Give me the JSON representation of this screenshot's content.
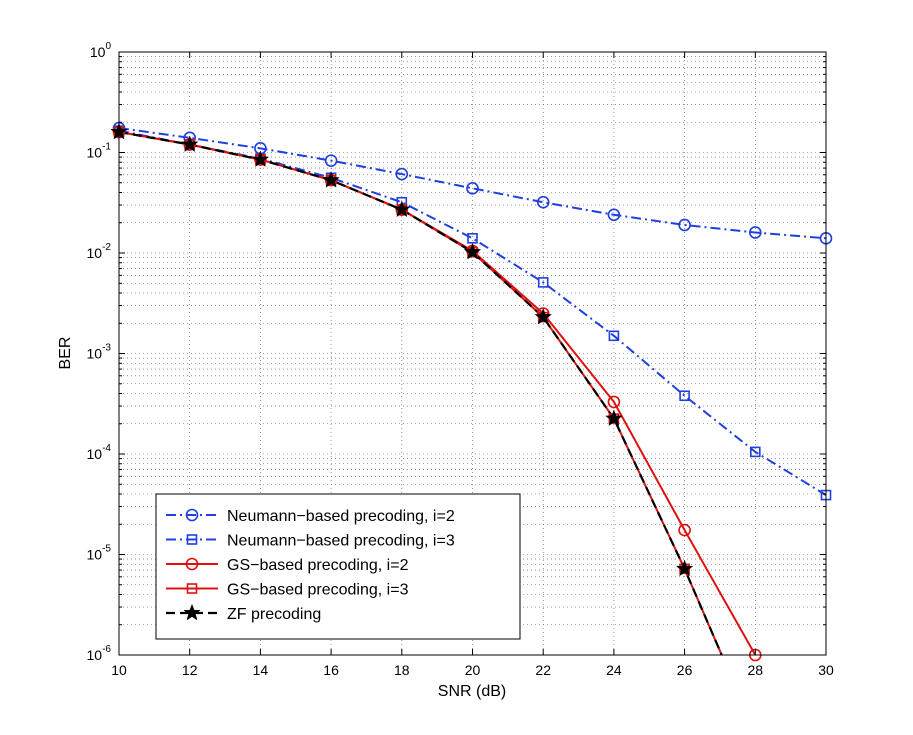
{
  "chart_data": {
    "type": "line",
    "title": "",
    "xlabel": "SNR (dB)",
    "ylabel": "BER",
    "xlim": [
      10,
      30
    ],
    "ylim": [
      1e-06,
      1
    ],
    "yscale": "log",
    "grid": true,
    "legend_position": "bottom-left",
    "x_ticks": [
      "10",
      "12",
      "14",
      "16",
      "18",
      "20",
      "22",
      "24",
      "26",
      "28",
      "30"
    ],
    "y_ticks": [
      {
        "base": "10",
        "exp": "0"
      },
      {
        "base": "10",
        "exp": "-1"
      },
      {
        "base": "10",
        "exp": "-2"
      },
      {
        "base": "10",
        "exp": "-3"
      },
      {
        "base": "10",
        "exp": "-4"
      },
      {
        "base": "10",
        "exp": "-5"
      },
      {
        "base": "10",
        "exp": "-6"
      }
    ],
    "series": [
      {
        "name": "Neumann−based precoding, i=2",
        "color": "#1f3fe0",
        "linestyle": "dashdot",
        "marker": "circle",
        "x": [
          10,
          12,
          14,
          16,
          18,
          20,
          22,
          24,
          26,
          28,
          30
        ],
        "y": [
          0.175,
          0.14,
          0.11,
          0.083,
          0.061,
          0.044,
          0.032,
          0.024,
          0.019,
          0.016,
          0.014
        ]
      },
      {
        "name": "Neumann−based precoding, i=3",
        "color": "#1f3fe0",
        "linestyle": "dashdot",
        "marker": "square",
        "x": [
          10,
          12,
          14,
          16,
          18,
          20,
          22,
          24,
          26,
          28,
          30
        ],
        "y": [
          0.165,
          0.12,
          0.087,
          0.056,
          0.032,
          0.014,
          0.0051,
          0.0015,
          0.00038,
          0.000105,
          3.9e-05
        ]
      },
      {
        "name": "GS−based precoding, i=2",
        "color": "#e01010",
        "linestyle": "solid",
        "marker": "circle",
        "x": [
          10,
          12,
          14,
          16,
          18,
          20,
          22,
          24,
          26,
          28
        ],
        "y": [
          0.16,
          0.12,
          0.085,
          0.053,
          0.027,
          0.0105,
          0.0025,
          0.00033,
          1.75e-05,
          1e-06
        ]
      },
      {
        "name": "GS−based precoding, i=3",
        "color": "#e01010",
        "linestyle": "solid",
        "marker": "square",
        "x": [
          10,
          12,
          14,
          16,
          18,
          20,
          22,
          24,
          26,
          27.05
        ],
        "y": [
          0.16,
          0.12,
          0.085,
          0.053,
          0.027,
          0.0102,
          0.0023,
          0.000225,
          7.2e-06,
          1e-06
        ]
      },
      {
        "name": "ZF precoding",
        "color": "#000000",
        "linestyle": "dashed",
        "marker": "star",
        "x": [
          10,
          12,
          14,
          16,
          18,
          20,
          22,
          24,
          26,
          27.05
        ],
        "y": [
          0.16,
          0.12,
          0.085,
          0.053,
          0.027,
          0.0102,
          0.0023,
          0.000225,
          7.2e-06,
          1e-06
        ]
      }
    ]
  }
}
